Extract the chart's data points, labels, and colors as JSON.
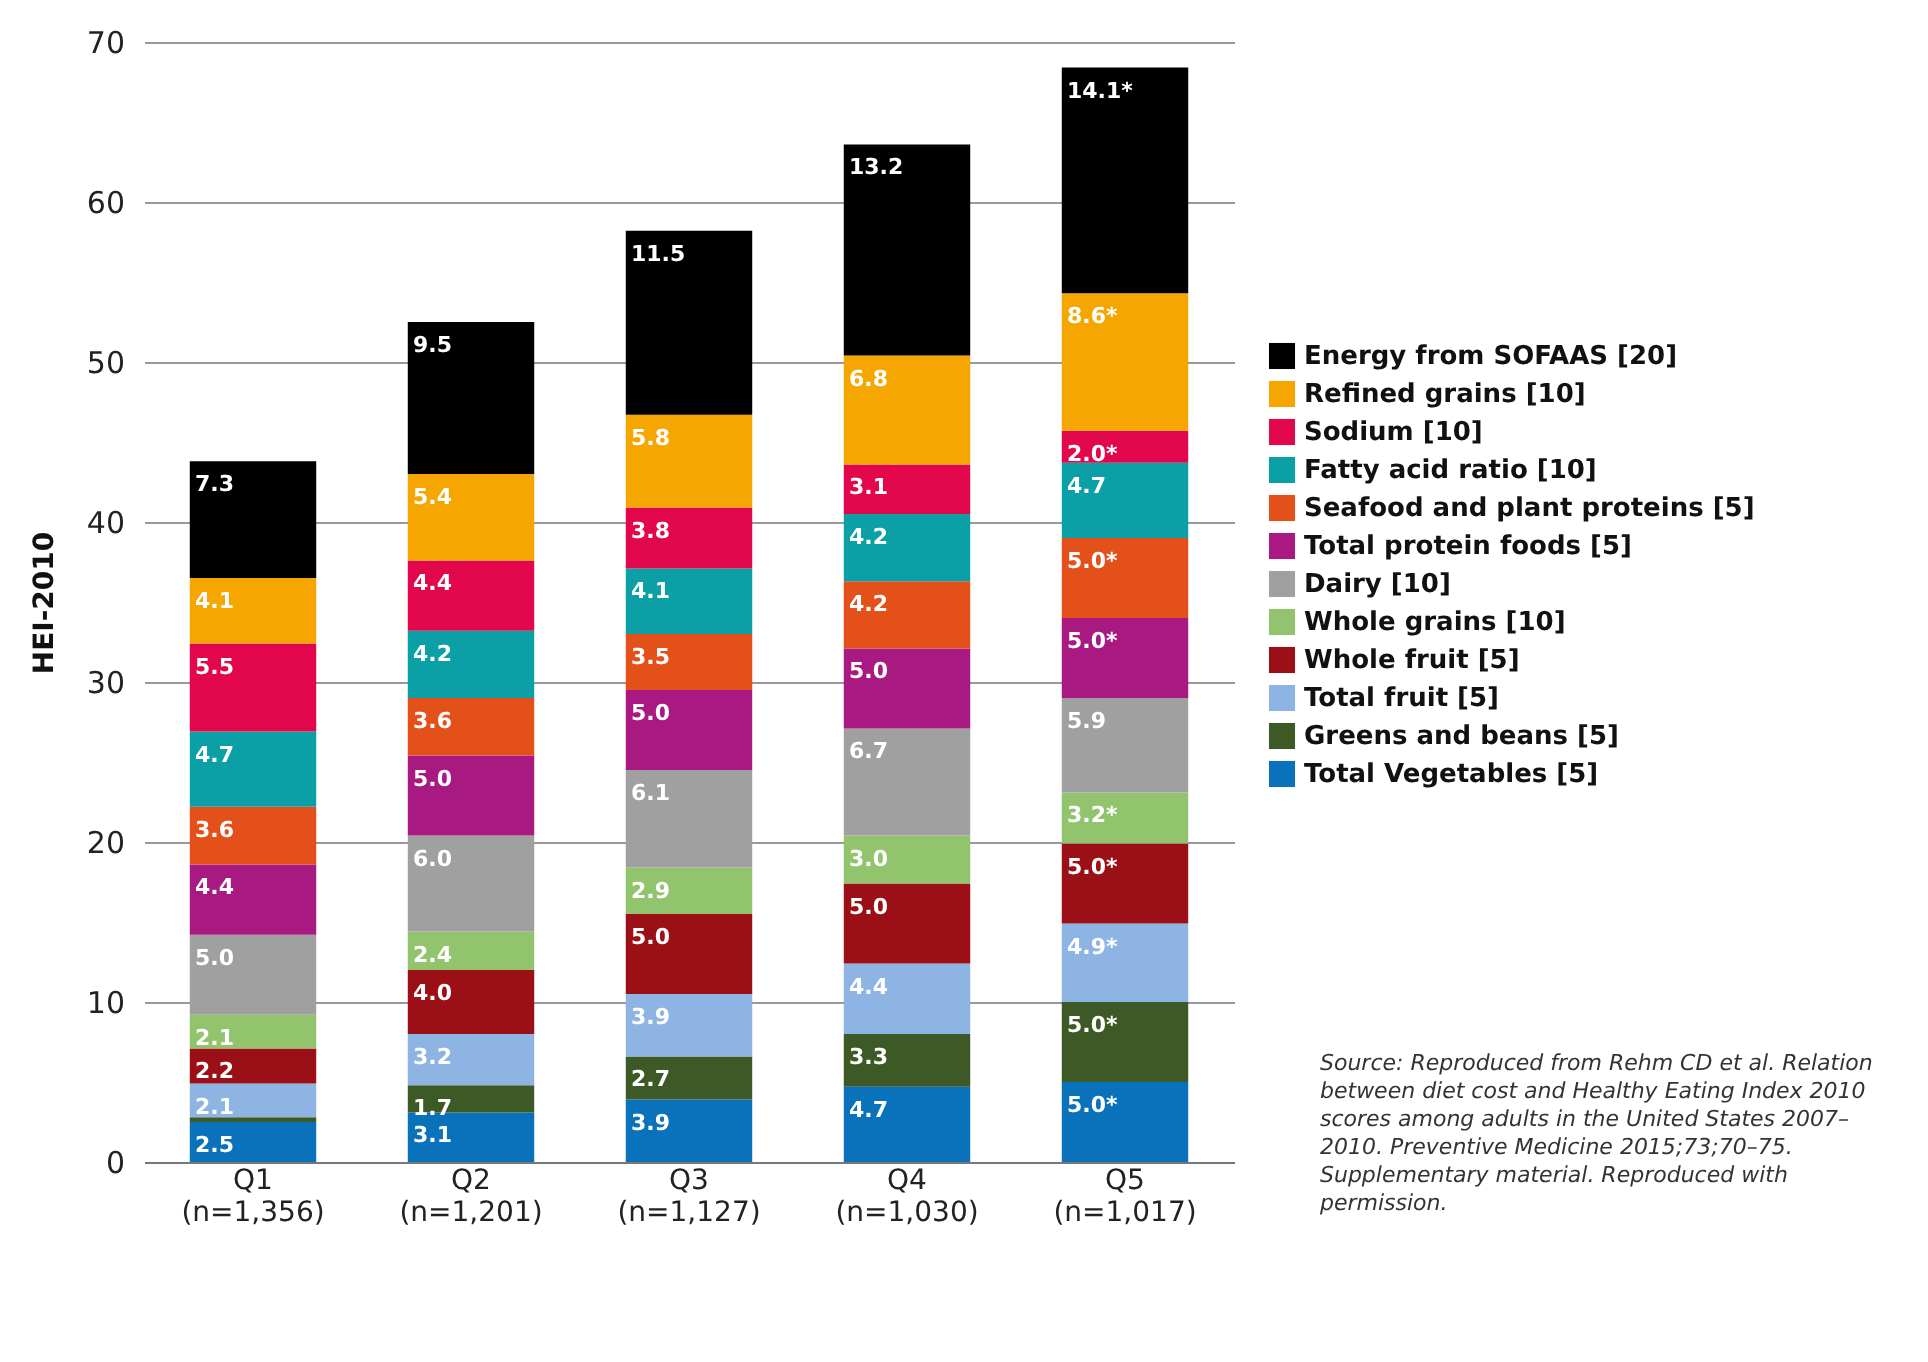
{
  "chart_data": {
    "type": "bar",
    "stacked": true,
    "ylabel": "HEI-2010",
    "categories": [
      "Q1\n(n=1,356)",
      "Q2\n(n=1,201)",
      "Q3\n(n=1,127)",
      "Q4\n(n=1,030)",
      "Q5\n(n=1,017)"
    ],
    "ylim": [
      0,
      70
    ],
    "yticks": [
      0,
      10,
      20,
      30,
      40,
      50,
      60,
      70
    ],
    "grid": "y",
    "legend": "right",
    "series": [
      {
        "name": "Total Vegetables [5]",
        "color": "#0a72ba",
        "values": [
          2.5,
          3.1,
          3.9,
          4.7,
          5.0
        ],
        "value_labels": [
          "2.5",
          "3.1",
          "3.9",
          "4.7",
          "5.0*"
        ]
      },
      {
        "name": "Greens and beans [5]",
        "color": "#3d5a26",
        "values": [
          0.3,
          1.7,
          2.7,
          3.3,
          5.0
        ],
        "value_labels": [
          null,
          "1.7",
          "2.7",
          "3.3",
          "5.0*"
        ]
      },
      {
        "name": "Total fruit [5]",
        "color": "#8db4e2",
        "values": [
          2.1,
          3.2,
          3.9,
          4.4,
          4.9
        ],
        "value_labels": [
          "2.1",
          "3.2",
          "3.9",
          "4.4",
          "4.9*"
        ]
      },
      {
        "name": "Whole fruit [5]",
        "color": "#9b1016",
        "values": [
          2.2,
          4.0,
          5.0,
          5.0,
          5.0
        ],
        "value_labels": [
          "2.2",
          "4.0",
          "5.0",
          "5.0",
          "5.0*"
        ]
      },
      {
        "name": "Whole grains [10]",
        "color": "#92c46e",
        "values": [
          2.1,
          2.4,
          2.9,
          3.0,
          3.2
        ],
        "value_labels": [
          "2.1",
          "2.4",
          "2.9",
          "3.0",
          "3.2*"
        ]
      },
      {
        "name": "Dairy [10]",
        "color": "#a0a0a0",
        "values": [
          5.0,
          6.0,
          6.1,
          6.7,
          5.9
        ],
        "value_labels": [
          "5.0",
          "6.0",
          "6.1",
          "6.7",
          "5.9"
        ]
      },
      {
        "name": "Total protein foods [5]",
        "color": "#a81a82",
        "values": [
          4.4,
          5.0,
          5.0,
          5.0,
          5.0
        ],
        "value_labels": [
          "4.4",
          "5.0",
          "5.0",
          "5.0",
          "5.0*"
        ]
      },
      {
        "name": "Seafood and plant proteins [5]",
        "color": "#e4501a",
        "values": [
          3.6,
          3.6,
          3.5,
          4.2,
          5.0
        ],
        "value_labels": [
          "3.6",
          "3.6",
          "3.5",
          "4.2",
          "5.0*"
        ]
      },
      {
        "name": "Fatty acid ratio [10]",
        "color": "#0aa0a6",
        "values": [
          4.7,
          4.2,
          4.1,
          4.2,
          4.7
        ],
        "value_labels": [
          "4.7",
          "4.2",
          "4.1",
          "4.2",
          "4.7"
        ]
      },
      {
        "name": "Sodium [10]",
        "color": "#e2064c",
        "values": [
          5.5,
          4.4,
          3.8,
          3.1,
          2.0
        ],
        "value_labels": [
          "5.5",
          "4.4",
          "3.8",
          "3.1",
          "2.0*"
        ]
      },
      {
        "name": "Refined grains [10]",
        "color": "#f5a600",
        "values": [
          4.1,
          5.4,
          5.8,
          6.8,
          8.6
        ],
        "value_labels": [
          "4.1",
          "5.4",
          "5.8",
          "6.8",
          "8.6*"
        ]
      },
      {
        "name": "Energy from SOFAAS [20]",
        "color": "#000000",
        "values": [
          7.3,
          9.5,
          11.5,
          13.2,
          14.1
        ],
        "value_labels": [
          "7.3",
          "9.5",
          "11.5",
          "13.2",
          "14.1*"
        ]
      }
    ],
    "annotations": [
      "Source: Reproduced from Rehm CD et al. Relation between diet cost and Healthy Eating Index 2010 scores among adults in the United States 2007–2010. Preventive Medicine 2015;73;70–75. Supplementary material. Reproduced with permission."
    ]
  }
}
